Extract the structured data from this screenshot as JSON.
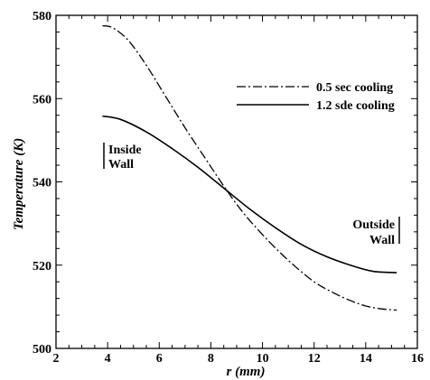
{
  "chart_data": {
    "type": "line",
    "title": "",
    "xlabel": "r (mm)",
    "ylabel": "Temperature (K)",
    "xlim": [
      2,
      16
    ],
    "ylim": [
      500,
      580
    ],
    "x_ticks": [
      2,
      4,
      6,
      8,
      10,
      12,
      14,
      16
    ],
    "y_ticks": [
      500,
      520,
      540,
      560,
      580
    ],
    "grid": false,
    "legend_position": "top-right",
    "series": [
      {
        "name": "0.5 sec cooling",
        "style": "dash-dot",
        "color": "#000000",
        "x": [
          3.8,
          4.2,
          4.8,
          5.5,
          6.2,
          7.0,
          7.8,
          8.5,
          9.2,
          9.9,
          10.6,
          11.3,
          12.0,
          12.7,
          13.4,
          14.0,
          14.6,
          15.2
        ],
        "y": [
          577.5,
          577.0,
          574.0,
          568.0,
          561.0,
          553.0,
          545.5,
          539.0,
          533.0,
          528.0,
          523.5,
          519.5,
          516.0,
          513.5,
          511.5,
          510.2,
          509.5,
          509.2
        ]
      },
      {
        "name": "1.2 sde cooling",
        "style": "solid",
        "color": "#000000",
        "x": [
          3.8,
          4.5,
          5.5,
          6.5,
          7.5,
          8.5,
          9.5,
          10.5,
          11.5,
          12.5,
          13.5,
          14.3,
          15.2
        ],
        "y": [
          555.8,
          555.0,
          552.0,
          548.0,
          543.5,
          538.5,
          533.5,
          529.0,
          525.0,
          522.0,
          519.8,
          518.5,
          518.2
        ]
      }
    ],
    "annotations": [
      {
        "lines": [
          "Inside",
          "Wall"
        ]
      },
      {
        "lines": [
          "Outside",
          "Wall"
        ]
      }
    ]
  }
}
